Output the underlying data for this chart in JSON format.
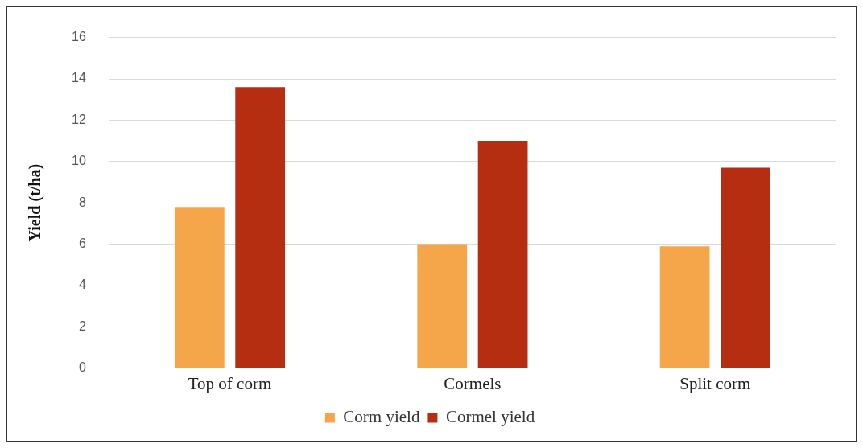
{
  "chart_data": {
    "type": "bar",
    "ylabel": "Yield (t/ha)",
    "categories": [
      "Top of corm",
      "Cormels",
      "Split corm"
    ],
    "series": [
      {
        "name": "Corm yield",
        "color": "#f5a64a",
        "values": [
          7.8,
          6.0,
          5.9
        ]
      },
      {
        "name": "Cormel yield",
        "color": "#b52e12",
        "values": [
          13.6,
          11.0,
          9.7
        ]
      }
    ],
    "ylim": [
      0,
      16
    ],
    "yticks": [
      0,
      2,
      4,
      6,
      8,
      10,
      12,
      14,
      16
    ],
    "grid": "y",
    "legend": "bottom"
  }
}
